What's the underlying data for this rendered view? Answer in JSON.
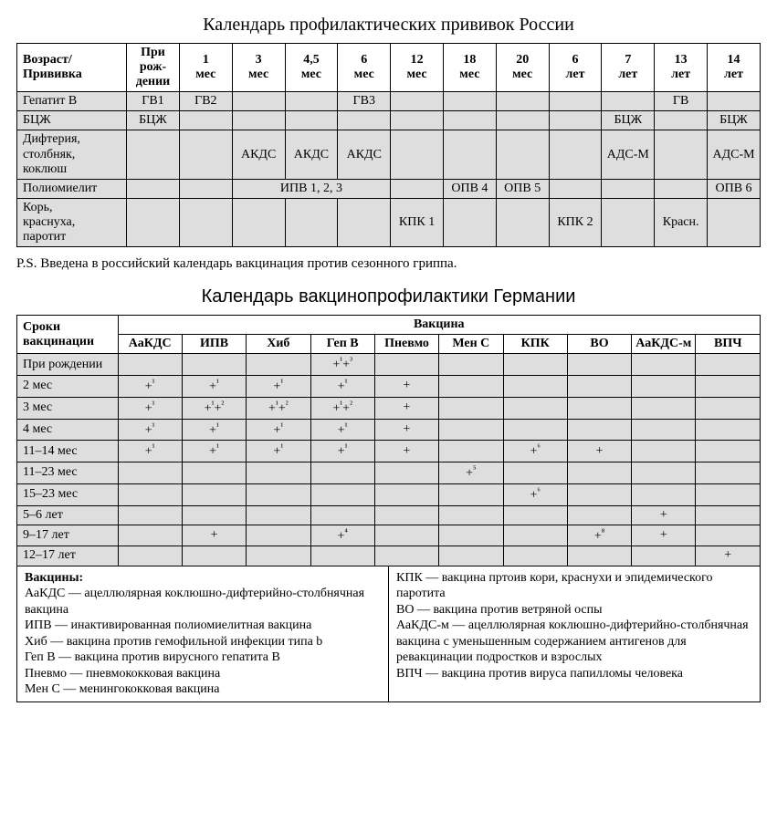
{
  "title1": "Календарь профилактических прививок России",
  "t1_headers": [
    "Возраст/\nПрививка",
    "При\nрож-\nдении",
    "1\nмес",
    "3\nмес",
    "4,5\nмес",
    "6\nмес",
    "12\nмес",
    "18\nмес",
    "20\nмес",
    "6\nлет",
    "7\nлет",
    "13\nлет",
    "14\nлет"
  ],
  "t1_rows": [
    {
      "label": "Гепатит B",
      "cells": [
        "ГВ1",
        "ГВ2",
        "",
        "",
        "ГВ3",
        "",
        "",
        "",
        "",
        "",
        "ГВ",
        ""
      ]
    },
    {
      "label": "БЦЖ",
      "cells": [
        "БЦЖ",
        "",
        "",
        "",
        "",
        "",
        "",
        "",
        "",
        "БЦЖ",
        "",
        "БЦЖ"
      ]
    },
    {
      "label": "Дифтерия,\nстолбняк,\nкоклюш",
      "cells": [
        "",
        "",
        "АКДС",
        "АКДС",
        "АКДС",
        "",
        "",
        "",
        "",
        "АДС-М",
        "",
        "АДС-М"
      ]
    },
    {
      "label": "Полиомиелит",
      "special": "ipv",
      "ipv_label": "ИПВ 1, 2, 3",
      "cells_post": [
        "",
        "ОПВ 4",
        "ОПВ 5",
        "",
        "",
        "",
        "ОПВ 6"
      ]
    },
    {
      "label": "Корь,\nкраснуха,\nпаротит",
      "cells": [
        "",
        "",
        "",
        "",
        "",
        "КПК 1",
        "",
        "",
        "КПК 2",
        "",
        "Красн.",
        ""
      ]
    }
  ],
  "ps_note": "P.S. Введена в российский календарь вакцинация против сезонного гриппа.",
  "title2": "Календарь вакцинопрофилактики Германии",
  "t2_col_header_main": "Сроки\nвакцинации",
  "t2_group_header": "Вакцина",
  "t2_cols": [
    "АаКДС",
    "ИПВ",
    "Хиб",
    "Геп В",
    "Пневмо",
    "Мен С",
    "КПК",
    "ВО",
    "АаКДС-м",
    "ВПЧ"
  ],
  "t2_rows": [
    {
      "label": "При рождении",
      "cells": [
        "",
        "",
        "",
        "+¹+³",
        "",
        "",
        "",
        "",
        "",
        ""
      ]
    },
    {
      "label": "2 мес",
      "cells": [
        "+¹",
        "+¹",
        "+¹",
        "+¹",
        "+",
        "",
        "",
        "",
        "",
        ""
      ]
    },
    {
      "label": "3 мес",
      "cells": [
        "+¹",
        "+¹+²",
        "+¹+²",
        "+¹+²",
        "+",
        "",
        "",
        "",
        "",
        ""
      ]
    },
    {
      "label": "4 мес",
      "cells": [
        "+¹",
        "+¹",
        "+¹",
        "+¹",
        "+",
        "",
        "",
        "",
        "",
        ""
      ]
    },
    {
      "label": "11–14 мес",
      "cells": [
        "+¹",
        "+¹",
        "+¹",
        "+¹",
        "+",
        "",
        "+⁶",
        "+",
        "",
        ""
      ]
    },
    {
      "label": "11–23 мес",
      "cells": [
        "",
        "",
        "",
        "",
        "",
        "+⁵",
        "",
        "",
        "",
        ""
      ]
    },
    {
      "label": "15–23 мес",
      "cells": [
        "",
        "",
        "",
        "",
        "",
        "",
        "+⁶",
        "",
        "",
        ""
      ]
    },
    {
      "label": "5–6 лет",
      "cells": [
        "",
        "",
        "",
        "",
        "",
        "",
        "",
        "",
        "+",
        ""
      ]
    },
    {
      "label": "9–17 лет",
      "cells": [
        "",
        "+",
        "",
        "+⁴",
        "",
        "",
        "",
        "+⁸",
        "+",
        ""
      ]
    },
    {
      "label": "12–17 лет",
      "cells": [
        "",
        "",
        "",
        "",
        "",
        "",
        "",
        "",
        "",
        "+"
      ]
    }
  ],
  "legend_title": "Вакцины:",
  "legend_left": [
    "АаКДС — ацеллюлярная коклюшно-дифтерийно-столбнячная вакцина",
    "ИПВ — инактивированная полиомиелитная вакцина",
    "Хиб — вакцина против гемофильной инфекции типа b",
    "Геп В — вакцина против вирусного гепатита В",
    "Пневмо — пневмококковая вакцина",
    "Мен С — менингококковая вакцина"
  ],
  "legend_right": [
    "КПК — вакцина пртоив кори, краснухи и эпидемического паротита",
    "ВО — вакцина против ветряной оспы",
    "АаКДС-м — ацеллюлярная коклюшно-дифтерийно-столбнячная вакцина с уменьшенным содержанием антигенов для ревакцинации подростков и взрослых",
    "ВПЧ — вакцина против вируса папилломы человека"
  ]
}
